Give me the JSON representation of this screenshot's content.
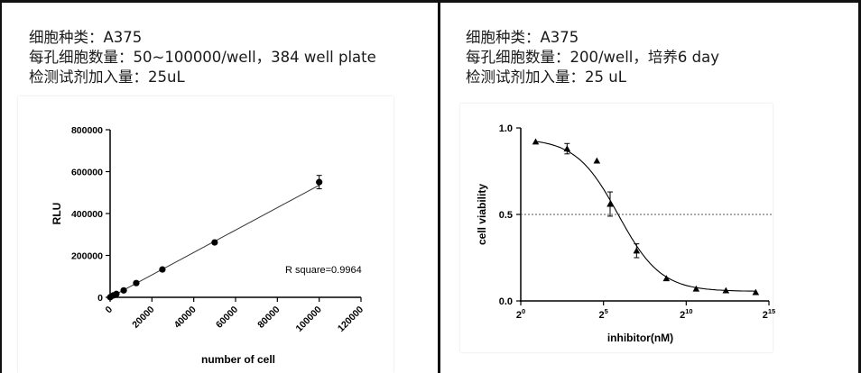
{
  "left_panel": {
    "line1": "细胞种类：A375",
    "line2": "每孔细胞数量：50~100000/well，384 well plate",
    "line3": "检测试剂加入量：25uL"
  },
  "right_panel": {
    "line1": "细胞种类：A375",
    "line2": "每孔细胞数量：200/well，培养6 day",
    "line3": "检测试剂加入量：25 uL"
  },
  "chart_data": [
    {
      "type": "scatter",
      "xlabel": "number of cell",
      "ylabel": "RLU",
      "xlim": [
        0,
        120000
      ],
      "ylim": [
        0,
        800000
      ],
      "xticks": [
        "0",
        "20000",
        "40000",
        "60000",
        "80000",
        "100000",
        "120000"
      ],
      "yticks": [
        "0",
        "200000",
        "400000",
        "600000",
        "800000"
      ],
      "annotation": "R square=0.9964",
      "fit": "linear",
      "points": [
        {
          "x": 50,
          "y": 500
        },
        {
          "x": 1500,
          "y": 9000
        },
        {
          "x": 3000,
          "y": 16000
        },
        {
          "x": 6500,
          "y": 33000
        },
        {
          "x": 12500,
          "y": 68000
        },
        {
          "x": 25000,
          "y": 133000
        },
        {
          "x": 50000,
          "y": 262000
        },
        {
          "x": 100000,
          "y": 550000,
          "err": 32000
        }
      ],
      "line_end": {
        "x": 100000,
        "y": 535000
      },
      "grid": false
    },
    {
      "type": "scatter",
      "xlabel": "inhibitor(nM)",
      "ylabel": "cell viability",
      "x_scale": "log2",
      "xlim_exp": [
        0,
        15
      ],
      "ylim": [
        0,
        1.0
      ],
      "xticks": [
        {
          "base": "2",
          "exp": "0"
        },
        {
          "base": "2",
          "exp": "5"
        },
        {
          "base": "2",
          "exp": "10"
        },
        {
          "base": "2",
          "exp": "15"
        }
      ],
      "yticks": [
        "0.0",
        "0.5",
        "1.0"
      ],
      "reference_line_y": 0.5,
      "fit": "sigmoidal",
      "points": [
        {
          "x_exp": 0.9,
          "y": 0.92,
          "err": 0.0
        },
        {
          "x_exp": 2.8,
          "y": 0.88,
          "err": 0.03
        },
        {
          "x_exp": 4.6,
          "y": 0.81,
          "err": 0.0
        },
        {
          "x_exp": 5.4,
          "y": 0.56,
          "err": 0.07
        },
        {
          "x_exp": 7.0,
          "y": 0.29,
          "err": 0.04
        },
        {
          "x_exp": 8.8,
          "y": 0.13,
          "err": 0.0
        },
        {
          "x_exp": 10.6,
          "y": 0.07,
          "err": 0.0
        },
        {
          "x_exp": 12.4,
          "y": 0.06,
          "err": 0.0
        },
        {
          "x_exp": 14.2,
          "y": 0.05,
          "err": 0.0
        }
      ],
      "grid": false
    }
  ]
}
